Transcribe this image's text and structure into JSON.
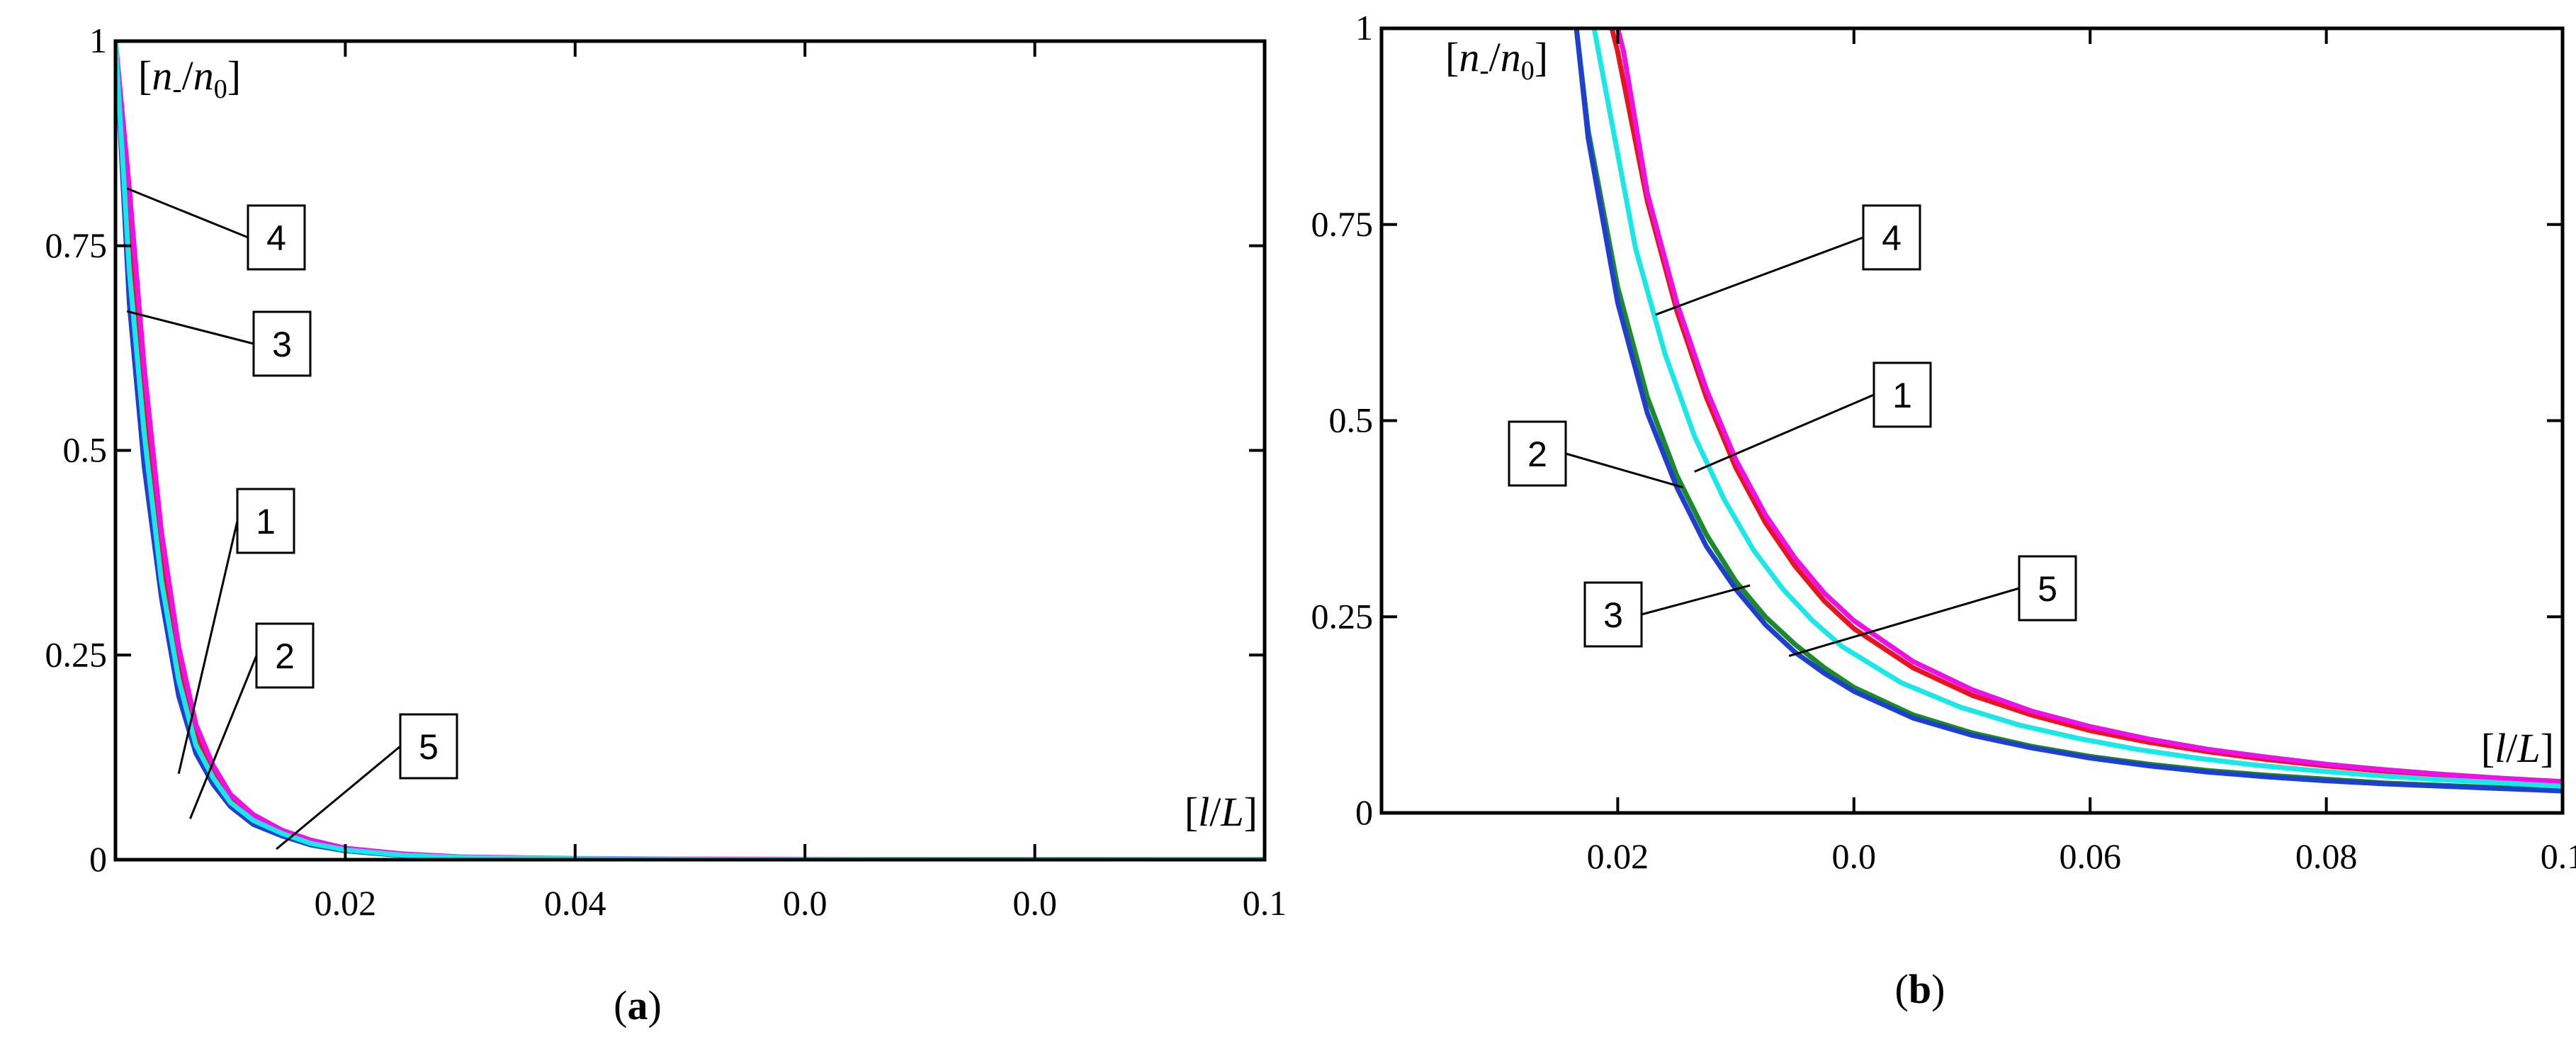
{
  "chart_data": [
    {
      "panel": "(a)",
      "panel_letter": "a",
      "type": "line",
      "ylabel": "[n-/n0]",
      "ylabel_parts": {
        "open": "[",
        "n1": "n",
        "minus": "-",
        "slash": "/",
        "n2": "n",
        "zero": "0",
        "close": "]"
      },
      "xlabel": "[l/L]",
      "xlabel_parts": {
        "open": "[",
        "l": "l",
        "slash": "/",
        "L": "L",
        "close": "]"
      },
      "xlim": [
        0,
        0.1
      ],
      "ylim": [
        0,
        1
      ],
      "y_ticks": [
        {
          "value": 0,
          "label": "0"
        },
        {
          "value": 0.25,
          "label": "0.25"
        },
        {
          "value": 0.5,
          "label": "0.5"
        },
        {
          "value": 0.75,
          "label": "0.75"
        },
        {
          "value": 1,
          "label": "1"
        }
      ],
      "x_ticks": [
        {
          "value": 0.02,
          "label": "0.02"
        },
        {
          "value": 0.04,
          "label": "0.04"
        },
        {
          "value": 0.06,
          "label": "0.0"
        },
        {
          "value": 0.08,
          "label": "0.0"
        },
        {
          "value": 0.1,
          "label": "0.1"
        }
      ],
      "series": [
        {
          "name": "1",
          "color": "#e8141e",
          "x": [
            0,
            0.0012,
            0.0025,
            0.004,
            0.0055,
            0.007,
            0.0085,
            0.01,
            0.012,
            0.0145,
            0.017,
            0.02,
            0.025,
            0.03,
            0.04,
            0.05,
            0.07,
            0.1
          ],
          "y": [
            1.0,
            0.75,
            0.55,
            0.37,
            0.24,
            0.155,
            0.108,
            0.076,
            0.052,
            0.034,
            0.022,
            0.013,
            0.006,
            0.003,
            0.0012,
            0.0006,
            0.0002,
            0.0001
          ]
        },
        {
          "name": "2",
          "color": "#1c8a2a",
          "x": [
            0,
            0.0012,
            0.0025,
            0.004,
            0.0055,
            0.007,
            0.0085,
            0.01,
            0.012,
            0.0145,
            0.017,
            0.02,
            0.025,
            0.03,
            0.04,
            0.05,
            0.07,
            0.1
          ],
          "y": [
            1.0,
            0.7,
            0.5,
            0.33,
            0.21,
            0.135,
            0.095,
            0.067,
            0.045,
            0.03,
            0.019,
            0.011,
            0.005,
            0.0025,
            0.001,
            0.0005,
            0.0002,
            0.0001
          ]
        },
        {
          "name": "3",
          "color": "#1f3fd0",
          "x": [
            0,
            0.0012,
            0.0025,
            0.004,
            0.0055,
            0.007,
            0.0085,
            0.01,
            0.012,
            0.0145,
            0.017,
            0.02,
            0.025,
            0.03,
            0.04,
            0.05,
            0.07,
            0.1
          ],
          "y": [
            1.0,
            0.68,
            0.48,
            0.32,
            0.2,
            0.13,
            0.092,
            0.065,
            0.043,
            0.029,
            0.018,
            0.011,
            0.005,
            0.0025,
            0.001,
            0.0005,
            0.0002,
            0.0001
          ]
        },
        {
          "name": "4",
          "color": "#ee10e6",
          "x": [
            0,
            0.0012,
            0.0025,
            0.004,
            0.0055,
            0.007,
            0.0085,
            0.01,
            0.012,
            0.0145,
            0.017,
            0.02,
            0.025,
            0.03,
            0.04,
            0.05,
            0.07,
            0.1
          ],
          "y": [
            1.0,
            0.82,
            0.6,
            0.4,
            0.26,
            0.165,
            0.115,
            0.08,
            0.055,
            0.036,
            0.024,
            0.014,
            0.007,
            0.0035,
            0.0015,
            0.0008,
            0.0003,
            0.0001
          ]
        },
        {
          "name": "5",
          "color": "#1ae8e8",
          "x": [
            0,
            0.0012,
            0.0025,
            0.004,
            0.0055,
            0.007,
            0.0085,
            0.01,
            0.012,
            0.0145,
            0.017,
            0.02,
            0.025,
            0.03,
            0.04,
            0.05,
            0.07,
            0.1
          ],
          "y": [
            1.0,
            0.72,
            0.52,
            0.34,
            0.22,
            0.14,
            0.1,
            0.07,
            0.048,
            0.032,
            0.02,
            0.012,
            0.0055,
            0.0028,
            0.0011,
            0.0005,
            0.0002,
            0.0001
          ]
        }
      ],
      "annotations": [
        {
          "label": "4",
          "x": 0.001,
          "y": 0.82
        },
        {
          "label": "3",
          "x": 0.001,
          "y": 0.67
        },
        {
          "label": "1",
          "x": 0.0055,
          "y": 0.105
        },
        {
          "label": "2",
          "x": 0.0065,
          "y": 0.05
        },
        {
          "label": "5",
          "x": 0.014,
          "y": 0.013
        }
      ]
    },
    {
      "panel": "(b)",
      "panel_letter": "b",
      "type": "line",
      "ylabel": "[n-/n0]",
      "ylabel_parts": {
        "open": "[",
        "n1": "n",
        "minus": "-",
        "slash": "/",
        "n2": "n",
        "zero": "0",
        "close": "]"
      },
      "xlabel": "[l/L]",
      "xlabel_parts": {
        "open": "[",
        "l": "l",
        "slash": "/",
        "L": "L",
        "close": "]"
      },
      "xlim": [
        0,
        0.1
      ],
      "ylim": [
        0,
        1
      ],
      "y_ticks": [
        {
          "value": 0,
          "label": "0"
        },
        {
          "value": 0.25,
          "label": "0.25"
        },
        {
          "value": 0.5,
          "label": "0.5"
        },
        {
          "value": 0.75,
          "label": "0.75"
        },
        {
          "value": 1,
          "label": "1"
        }
      ],
      "x_ticks": [
        {
          "value": 0.02,
          "label": "0.02"
        },
        {
          "value": 0.04,
          "label": "0.0"
        },
        {
          "value": 0.06,
          "label": "0.06"
        },
        {
          "value": 0.08,
          "label": "0.08"
        },
        {
          "value": 0.1,
          "label": "0.1"
        }
      ],
      "series": [
        {
          "name": "1",
          "color": "#e8141e",
          "x": [
            0.0195,
            0.02,
            0.0225,
            0.025,
            0.0275,
            0.03,
            0.0325,
            0.035,
            0.0375,
            0.04,
            0.045,
            0.05,
            0.055,
            0.06,
            0.065,
            0.07,
            0.075,
            0.08,
            0.085,
            0.09,
            0.095,
            0.1
          ],
          "y": [
            1.0,
            0.97,
            0.78,
            0.64,
            0.53,
            0.44,
            0.37,
            0.315,
            0.27,
            0.235,
            0.185,
            0.15,
            0.125,
            0.105,
            0.09,
            0.078,
            0.068,
            0.06,
            0.053,
            0.047,
            0.042,
            0.038
          ]
        },
        {
          "name": "2",
          "color": "#1c8a2a",
          "x": [
            0.0165,
            0.0175,
            0.02,
            0.0225,
            0.025,
            0.0275,
            0.03,
            0.0325,
            0.035,
            0.0375,
            0.04,
            0.045,
            0.05,
            0.055,
            0.06,
            0.065,
            0.07,
            0.075,
            0.08,
            0.085,
            0.09,
            0.095,
            0.1
          ],
          "y": [
            1.0,
            0.87,
            0.67,
            0.53,
            0.43,
            0.355,
            0.295,
            0.25,
            0.215,
            0.185,
            0.16,
            0.125,
            0.102,
            0.085,
            0.072,
            0.062,
            0.054,
            0.048,
            0.043,
            0.038,
            0.035,
            0.032,
            0.029
          ]
        },
        {
          "name": "3",
          "color": "#1f3fd0",
          "x": [
            0.0165,
            0.0175,
            0.02,
            0.0225,
            0.025,
            0.0275,
            0.03,
            0.0325,
            0.035,
            0.0375,
            0.04,
            0.045,
            0.05,
            0.055,
            0.06,
            0.065,
            0.07,
            0.075,
            0.08,
            0.085,
            0.09,
            0.095,
            0.1
          ],
          "y": [
            1.0,
            0.86,
            0.65,
            0.51,
            0.415,
            0.34,
            0.285,
            0.24,
            0.205,
            0.178,
            0.155,
            0.121,
            0.099,
            0.083,
            0.07,
            0.06,
            0.052,
            0.046,
            0.041,
            0.037,
            0.034,
            0.031,
            0.028
          ]
        },
        {
          "name": "4",
          "color": "#ee10e6",
          "x": [
            0.02,
            0.0205,
            0.0225,
            0.025,
            0.0275,
            0.03,
            0.0325,
            0.035,
            0.0375,
            0.04,
            0.045,
            0.05,
            0.055,
            0.06,
            0.065,
            0.07,
            0.075,
            0.08,
            0.085,
            0.09,
            0.095,
            0.1
          ],
          "y": [
            1.0,
            0.97,
            0.79,
            0.65,
            0.54,
            0.45,
            0.38,
            0.325,
            0.28,
            0.245,
            0.193,
            0.157,
            0.13,
            0.11,
            0.094,
            0.081,
            0.071,
            0.062,
            0.055,
            0.049,
            0.044,
            0.04
          ]
        },
        {
          "name": "5",
          "color": "#1ae8e8",
          "x": [
            0.018,
            0.019,
            0.0215,
            0.024,
            0.0265,
            0.029,
            0.0315,
            0.034,
            0.0365,
            0.039,
            0.044,
            0.049,
            0.054,
            0.059,
            0.064,
            0.069,
            0.074,
            0.079,
            0.084,
            0.089,
            0.094,
            0.1
          ],
          "y": [
            1.0,
            0.92,
            0.72,
            0.585,
            0.48,
            0.4,
            0.335,
            0.285,
            0.245,
            0.212,
            0.166,
            0.135,
            0.112,
            0.095,
            0.081,
            0.07,
            0.061,
            0.054,
            0.048,
            0.043,
            0.039,
            0.034
          ]
        }
      ],
      "annotations": [
        {
          "label": "4",
          "x": 0.0232,
          "y": 0.635
        },
        {
          "label": "1",
          "x": 0.0265,
          "y": 0.435
        },
        {
          "label": "2",
          "x": 0.0255,
          "y": 0.415
        },
        {
          "label": "3",
          "x": 0.0312,
          "y": 0.29
        },
        {
          "label": "5",
          "x": 0.0345,
          "y": 0.2
        }
      ]
    }
  ]
}
